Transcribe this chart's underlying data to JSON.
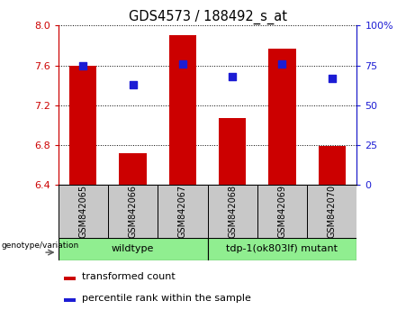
{
  "title": "GDS4573 / 188492_s_at",
  "samples": [
    "GSM842065",
    "GSM842066",
    "GSM842067",
    "GSM842068",
    "GSM842069",
    "GSM842070"
  ],
  "bar_values": [
    7.6,
    6.72,
    7.9,
    7.07,
    7.77,
    6.79
  ],
  "percentile_values": [
    75,
    63,
    76,
    68,
    76,
    67
  ],
  "bar_bottom": 6.4,
  "ylim_left": [
    6.4,
    8.0
  ],
  "ylim_right": [
    0,
    100
  ],
  "yticks_left": [
    6.4,
    6.8,
    7.2,
    7.6,
    8.0
  ],
  "yticks_right": [
    0,
    25,
    50,
    75,
    100
  ],
  "groups": [
    {
      "label": "wildtype",
      "n": 3
    },
    {
      "label": "tdp-1(ok803lf) mutant",
      "n": 3
    }
  ],
  "bar_color": "#CC0000",
  "dot_color": "#1C1CD4",
  "bar_width": 0.55,
  "left_axis_color": "#CC0000",
  "right_axis_color": "#1C1CD4",
  "group_row_bg": "#C8C8C8",
  "group_label_color": "#90EE90",
  "legend_items": [
    "transformed count",
    "percentile rank within the sample"
  ],
  "genotype_label": "genotype/variation"
}
